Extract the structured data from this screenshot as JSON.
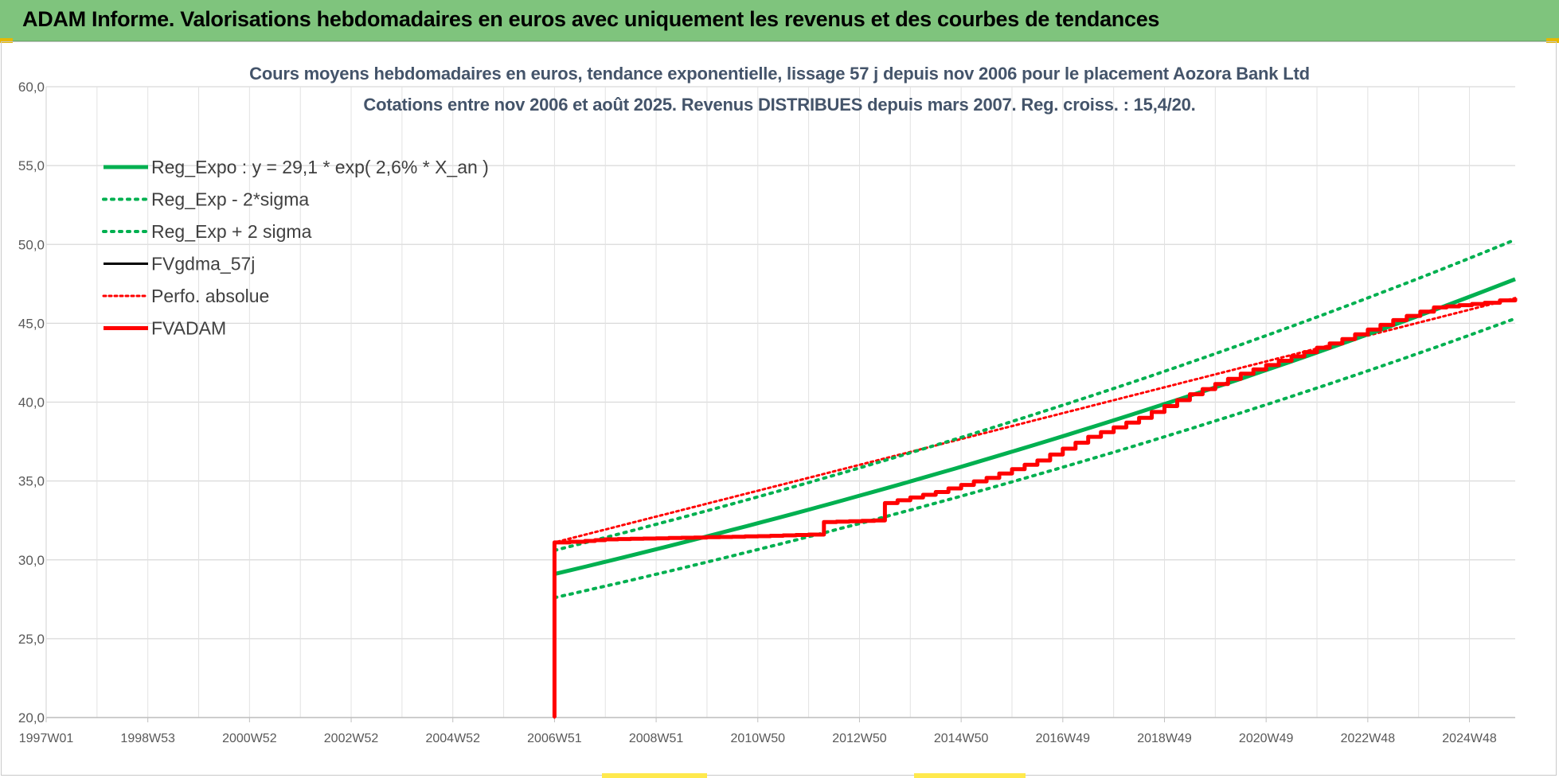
{
  "banner": {
    "title": "ADAM Informe. Valorisations hebdomadaires en euros avec uniquement les revenus et des courbes de tendances"
  },
  "chart_data": {
    "type": "line",
    "title_line1": "Cours moyens hebdomadaires en euros, tendance exponentielle, lissage 57 j depuis nov 2006 pour le placement Aozora Bank Ltd",
    "title_line2": "Cotations entre nov 2006 et août 2025. Revenus DISTRIBUES depuis mars 2007. Reg. croiss. : 15,4/20.",
    "ylim": [
      20,
      60
    ],
    "xlim": [
      1997.0,
      2025.9
    ],
    "y_ticks": [
      "20,0",
      "25,0",
      "30,0",
      "35,0",
      "40,0",
      "45,0",
      "50,0",
      "55,0",
      "60,0"
    ],
    "x_ticks": [
      {
        "label": "1997W01",
        "x": 1997.0
      },
      {
        "label": "1998W53",
        "x": 1999.0
      },
      {
        "label": "2000W52",
        "x": 2001.0
      },
      {
        "label": "2002W52",
        "x": 2003.0
      },
      {
        "label": "2004W52",
        "x": 2005.0
      },
      {
        "label": "2006W51",
        "x": 2007.0
      },
      {
        "label": "2008W51",
        "x": 2009.0
      },
      {
        "label": "2010W50",
        "x": 2011.0
      },
      {
        "label": "2012W50",
        "x": 2013.0
      },
      {
        "label": "2014W50",
        "x": 2015.0
      },
      {
        "label": "2016W49",
        "x": 2017.0
      },
      {
        "label": "2018W49",
        "x": 2019.0
      },
      {
        "label": "2020W49",
        "x": 2021.0
      },
      {
        "label": "2022W48",
        "x": 2023.0
      },
      {
        "label": "2024W48",
        "x": 2025.0
      }
    ],
    "grid": true,
    "legend_position": "top-left",
    "series": [
      {
        "name": "Reg_Expo : y = 29,1 * exp( 2,6% *  X_an )",
        "color": "#00b050",
        "style": "solid",
        "width": 5,
        "x": [
          2007.0,
          2025.9
        ],
        "y": [
          29.1,
          47.8
        ],
        "fn": "exp"
      },
      {
        "name": "Reg_Exp - 2*sigma",
        "color": "#00b050",
        "style": "dotted",
        "width": 4,
        "x": [
          2007.0,
          2025.9
        ],
        "y": [
          27.6,
          45.3
        ],
        "fn": "exp"
      },
      {
        "name": "Reg_Exp + 2 sigma",
        "color": "#00b050",
        "style": "dotted",
        "width": 4,
        "x": [
          2007.0,
          2025.9
        ],
        "y": [
          30.6,
          50.3
        ],
        "fn": "exp"
      },
      {
        "name": "FVgdma_57j",
        "color": "#000000",
        "style": "solid",
        "width": 3,
        "x": [
          2007.0,
          2007.0,
          2007.6,
          2008.0,
          2009.5,
          2011.0,
          2012.0,
          2012.3,
          2013.3,
          2013.5,
          2014.5,
          2015.5,
          2016.5,
          2017.5,
          2018.5,
          2019.5,
          2020.5,
          2021.5,
          2022.5,
          2023.5,
          2024.3,
          2025.3,
          2025.9
        ],
        "y": [
          20.0,
          31.1,
          31.2,
          31.3,
          31.4,
          31.5,
          31.6,
          32.4,
          32.5,
          33.6,
          34.3,
          35.2,
          36.3,
          37.8,
          39.0,
          40.5,
          41.8,
          42.9,
          44.0,
          45.2,
          46.0,
          46.3,
          46.6
        ]
      },
      {
        "name": "Perfo. absolue",
        "color": "#ff0000",
        "style": "dotted",
        "width": 3,
        "x": [
          2007.0,
          2007.0,
          2025.9
        ],
        "y": [
          20.0,
          31.1,
          46.6
        ]
      },
      {
        "name": "FVADAM",
        "color": "#ff0000",
        "style": "solid",
        "width": 5,
        "x": [
          2007.0,
          2007.0,
          2007.6,
          2008.0,
          2009.5,
          2011.0,
          2012.0,
          2012.3,
          2013.3,
          2013.5,
          2014.5,
          2015.5,
          2016.5,
          2017.5,
          2018.5,
          2019.5,
          2020.5,
          2021.5,
          2022.5,
          2023.5,
          2024.3,
          2025.3,
          2025.9
        ],
        "y": [
          20.0,
          31.1,
          31.2,
          31.3,
          31.4,
          31.5,
          31.6,
          32.4,
          32.5,
          33.6,
          34.3,
          35.2,
          36.3,
          37.8,
          39.0,
          40.5,
          41.8,
          42.9,
          44.0,
          45.2,
          46.0,
          46.3,
          46.6
        ]
      }
    ]
  }
}
